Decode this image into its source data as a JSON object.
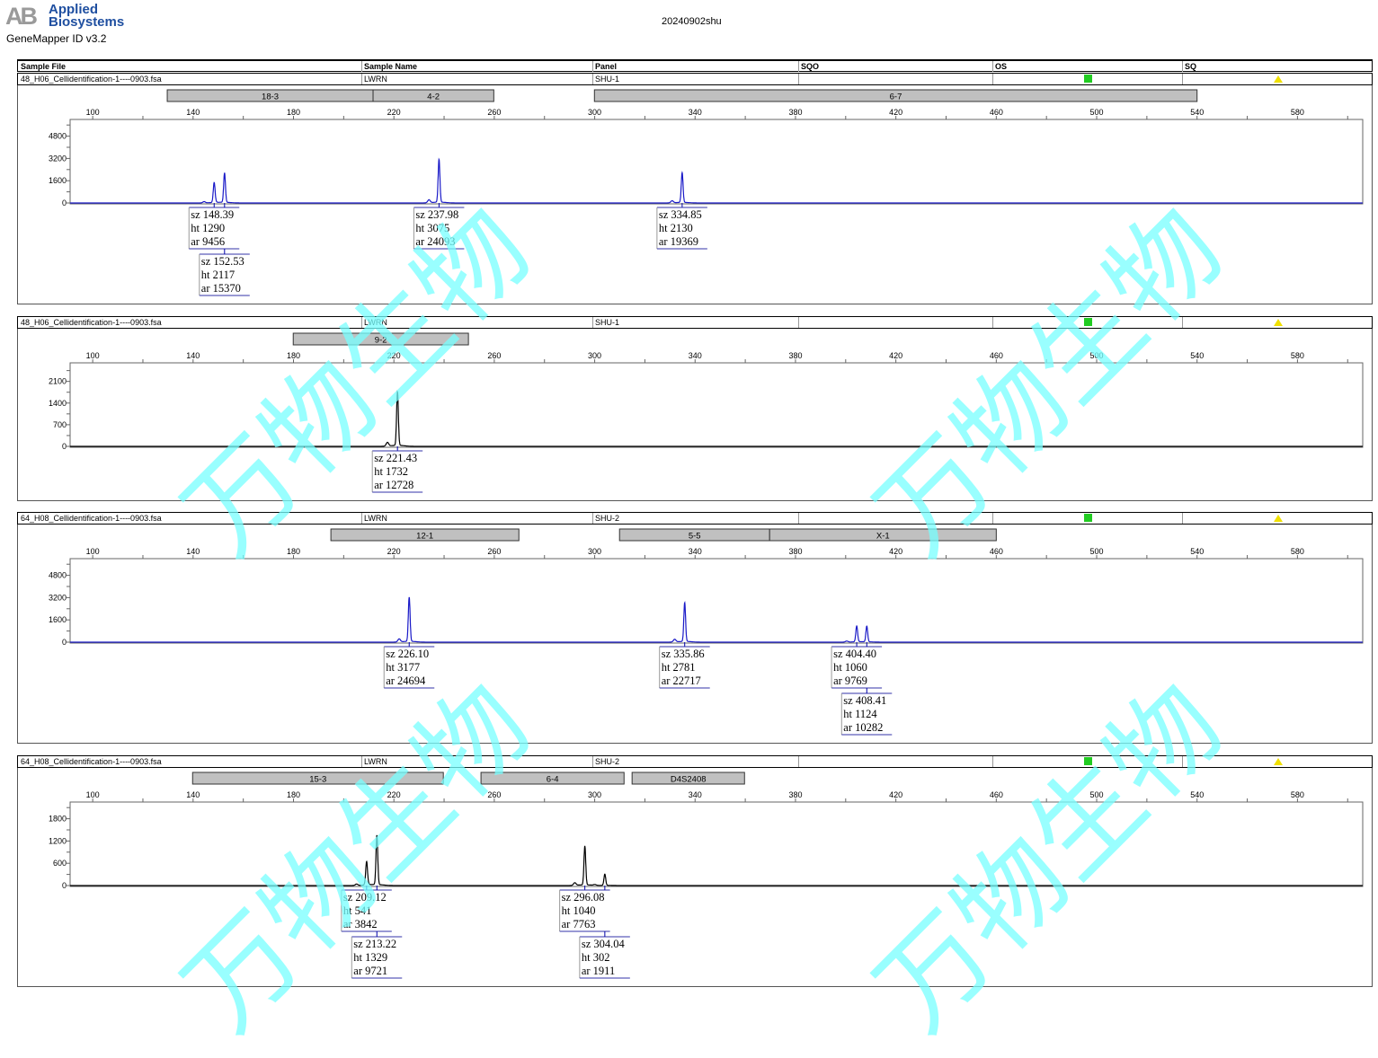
{
  "header": {
    "logo_text": "Applied Biosystems",
    "logo_mark": "AB",
    "software": "GeneMapper ID v3.2",
    "title": "20240902shu"
  },
  "columns": [
    "Sample File",
    "Sample Name",
    "Panel",
    "SQO",
    "OS",
    "SQ"
  ],
  "watermark": "万物生物",
  "colors": {
    "blue_dye": "#1a1ac8",
    "black_dye": "#000000",
    "bin": "#c0c0c0",
    "sqo_ok": "#22cc22",
    "sq_warn": "#f0e000"
  },
  "chart_data": [
    {
      "type": "line",
      "sample_file": "48_H06_Cellidentification-1----0903.fsa",
      "sample_name": "LWRN",
      "panel": "SHU-1",
      "dye": "blue",
      "xlim": [
        91,
        606
      ],
      "xticks": [
        100,
        140,
        180,
        220,
        260,
        300,
        340,
        380,
        420,
        460,
        500,
        540,
        580
      ],
      "ylim": [
        0,
        6000
      ],
      "yticks": [
        0,
        1600,
        3200,
        4800
      ],
      "bins": [
        {
          "label": "18-3",
          "range": [
            129.7,
            211.7
          ]
        },
        {
          "label": "4-2",
          "range": [
            211.7,
            259.8
          ]
        },
        {
          "label": "6-7",
          "range": [
            299.9,
            540
          ]
        }
      ],
      "peaks": [
        {
          "sz": "148.39",
          "ht": 1290,
          "ar": "9456"
        },
        {
          "sz": "152.53",
          "ht": 2117,
          "ar": "15370"
        },
        {
          "sz": "237.98",
          "ht": 3075,
          "ar": "24093"
        },
        {
          "sz": "334.85",
          "ht": 2130,
          "ar": "19369"
        }
      ]
    },
    {
      "type": "line",
      "sample_file": "48_H06_Cellidentification-1----0903.fsa",
      "sample_name": "LWRN",
      "panel": "SHU-1",
      "dye": "black",
      "xlim": [
        91,
        606
      ],
      "xticks": [
        100,
        140,
        180,
        220,
        260,
        300,
        340,
        380,
        420,
        460,
        500,
        540,
        580
      ],
      "ylim": [
        0,
        2700
      ],
      "yticks": [
        0,
        700,
        1400,
        2100
      ],
      "bins": [
        {
          "label": "9-2",
          "range": [
            179.9,
            249.7
          ]
        }
      ],
      "peaks": [
        {
          "sz": "221.43",
          "ht": 1732,
          "ar": "12728"
        }
      ]
    },
    {
      "type": "line",
      "sample_file": "64_H08_Cellidentification-1----0903.fsa",
      "sample_name": "LWRN",
      "panel": "SHU-2",
      "dye": "blue",
      "xlim": [
        91,
        606
      ],
      "xticks": [
        100,
        140,
        180,
        220,
        260,
        300,
        340,
        380,
        420,
        460,
        500,
        540,
        580
      ],
      "ylim": [
        0,
        6000
      ],
      "yticks": [
        0,
        1600,
        3200,
        4800
      ],
      "bins": [
        {
          "label": "12-1",
          "range": [
            194.9,
            269.8
          ]
        },
        {
          "label": "5-5",
          "range": [
            309.9,
            369.7
          ]
        },
        {
          "label": "X-1",
          "range": [
            369.7,
            460
          ]
        }
      ],
      "peaks": [
        {
          "sz": "226.10",
          "ht": 3177,
          "ar": "24694"
        },
        {
          "sz": "335.86",
          "ht": 2781,
          "ar": "22717"
        },
        {
          "sz": "404.40",
          "ht": 1060,
          "ar": "9769"
        },
        {
          "sz": "408.41",
          "ht": 1124,
          "ar": "10282"
        }
      ]
    },
    {
      "type": "line",
      "sample_file": "64_H08_Cellidentification-1----0903.fsa",
      "sample_name": "LWRN",
      "panel": "SHU-2",
      "dye": "black",
      "xlim": [
        91,
        606
      ],
      "xticks": [
        100,
        140,
        180,
        220,
        260,
        300,
        340,
        380,
        420,
        460,
        500,
        540,
        580
      ],
      "ylim": [
        0,
        2250
      ],
      "yticks": [
        0,
        600,
        1200,
        1800
      ],
      "bins": [
        {
          "label": "15-3",
          "range": [
            139.8,
            239.7
          ]
        },
        {
          "label": "6-4",
          "range": [
            254.7,
            311.7
          ]
        },
        {
          "label": "D4S2408",
          "range": [
            314.9,
            359.7
          ]
        }
      ],
      "peaks": [
        {
          "sz": "209.12",
          "ht": 541,
          "ar": "3842"
        },
        {
          "sz": "213.22",
          "ht": 1329,
          "ar": "9721"
        },
        {
          "sz": "296.08",
          "ht": 1040,
          "ar": "7763"
        },
        {
          "sz": "304.04",
          "ht": 302,
          "ar": "1911"
        }
      ]
    }
  ]
}
